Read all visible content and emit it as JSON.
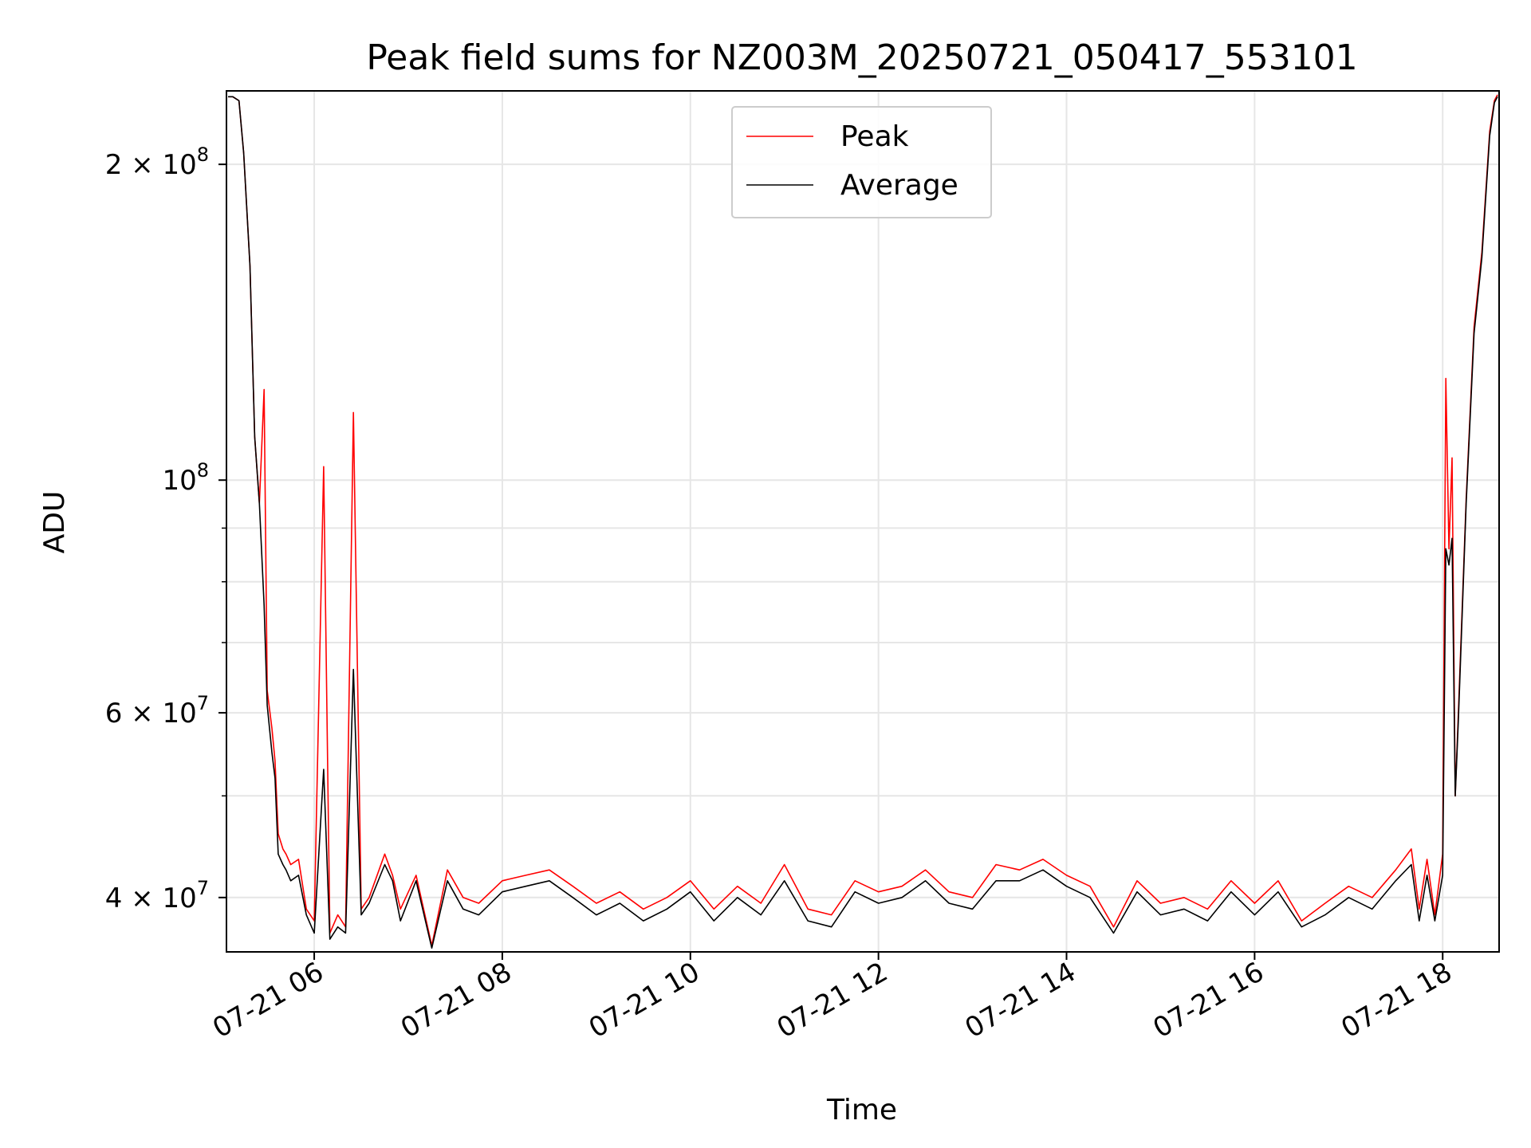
{
  "chart_data": {
    "type": "line",
    "title": "Peak field sums for NZ003M_20250721_050417_553101",
    "xlabel": "Time",
    "ylabel": "ADU",
    "yscale": "log",
    "xlim": [
      "2025-07-21 05:04",
      "2025-07-21 18:36"
    ],
    "ylim": [
      35500000,
      235000000
    ],
    "grid": true,
    "legend_position": "top-center",
    "x_ticks": [
      "07-21 06",
      "07-21 08",
      "07-21 10",
      "07-21 12",
      "07-21 14",
      "07-21 16",
      "07-21 18"
    ],
    "y_ticks": [
      {
        "base": "2 × 10",
        "exp": "8"
      },
      {
        "base": "10",
        "exp": "8"
      },
      {
        "base": "6 × 10",
        "exp": "7"
      },
      {
        "base": "4 × 10",
        "exp": "7"
      }
    ],
    "colors": {
      "Peak": "#ff0000",
      "Average": "#000000",
      "grid": "#e6e6e6"
    },
    "series": [
      {
        "name": "Peak",
        "x": [
          "05:05",
          "05:08",
          "05:12",
          "05:15",
          "05:19",
          "05:22",
          "05:25",
          "05:28",
          "05:30",
          "05:33",
          "05:35",
          "05:37",
          "05:40",
          "05:42",
          "05:45",
          "05:50",
          "05:55",
          "06:00",
          "06:06",
          "06:10",
          "06:15",
          "06:20",
          "06:25",
          "06:30",
          "06:35",
          "06:45",
          "06:50",
          "06:55",
          "07:05",
          "07:15",
          "07:25",
          "07:35",
          "07:45",
          "08:00",
          "08:15",
          "08:30",
          "08:45",
          "09:00",
          "09:15",
          "09:30",
          "09:45",
          "10:00",
          "10:15",
          "10:30",
          "10:45",
          "11:00",
          "11:15",
          "11:30",
          "11:45",
          "12:00",
          "12:15",
          "12:30",
          "12:45",
          "13:00",
          "13:15",
          "13:30",
          "13:45",
          "14:00",
          "14:15",
          "14:30",
          "14:45",
          "15:00",
          "15:15",
          "15:30",
          "15:45",
          "16:00",
          "16:15",
          "16:30",
          "16:45",
          "17:00",
          "17:15",
          "17:30",
          "17:40",
          "17:45",
          "17:50",
          "17:55",
          "18:00",
          "18:02",
          "18:04",
          "18:06",
          "18:08",
          "18:10",
          "18:15",
          "18:20",
          "18:25",
          "18:30",
          "18:33",
          "18:35"
        ],
        "y": [
          232000000,
          232000000,
          230000000,
          205000000,
          160000000,
          110000000,
          95000000,
          122000000,
          63000000,
          58000000,
          54000000,
          46000000,
          44500000,
          44000000,
          43000000,
          43500000,
          39000000,
          38000000,
          103000000,
          37000000,
          38500000,
          37500000,
          116000000,
          39000000,
          40000000,
          44000000,
          42000000,
          39000000,
          42000000,
          36000000,
          42500000,
          40000000,
          39500000,
          41500000,
          42000000,
          42500000,
          41000000,
          39500000,
          40500000,
          39000000,
          40000000,
          41500000,
          39000000,
          41000000,
          39500000,
          43000000,
          39000000,
          38500000,
          41500000,
          40500000,
          41000000,
          42500000,
          40500000,
          40000000,
          43000000,
          42500000,
          43500000,
          42000000,
          41000000,
          37500000,
          41500000,
          39500000,
          40000000,
          39000000,
          41500000,
          39500000,
          41500000,
          38000000,
          39500000,
          41000000,
          40000000,
          42500000,
          44500000,
          39000000,
          43500000,
          38500000,
          44000000,
          125000000,
          86000000,
          105000000,
          50000000,
          60000000,
          96000000,
          140000000,
          165000000,
          215000000,
          230000000,
          233000000
        ]
      },
      {
        "name": "Average",
        "x": [
          "05:05",
          "05:08",
          "05:12",
          "05:15",
          "05:19",
          "05:22",
          "05:25",
          "05:28",
          "05:30",
          "05:33",
          "05:35",
          "05:37",
          "05:40",
          "05:42",
          "05:45",
          "05:50",
          "05:55",
          "06:00",
          "06:06",
          "06:10",
          "06:15",
          "06:20",
          "06:25",
          "06:30",
          "06:35",
          "06:45",
          "06:50",
          "06:55",
          "07:05",
          "07:15",
          "07:25",
          "07:35",
          "07:45",
          "08:00",
          "08:15",
          "08:30",
          "08:45",
          "09:00",
          "09:15",
          "09:30",
          "09:45",
          "10:00",
          "10:15",
          "10:30",
          "10:45",
          "11:00",
          "11:15",
          "11:30",
          "11:45",
          "12:00",
          "12:15",
          "12:30",
          "12:45",
          "13:00",
          "13:15",
          "13:30",
          "13:45",
          "14:00",
          "14:15",
          "14:30",
          "14:45",
          "15:00",
          "15:15",
          "15:30",
          "15:45",
          "16:00",
          "16:15",
          "16:30",
          "16:45",
          "17:00",
          "17:15",
          "17:30",
          "17:40",
          "17:45",
          "17:50",
          "17:55",
          "18:00",
          "18:02",
          "18:04",
          "18:06",
          "18:08",
          "18:10",
          "18:15",
          "18:20",
          "18:25",
          "18:30",
          "18:33",
          "18:35"
        ],
        "y": [
          232000000,
          232000000,
          230000000,
          205000000,
          160000000,
          110000000,
          95000000,
          76000000,
          61000000,
          55000000,
          52000000,
          44000000,
          43000000,
          42500000,
          41500000,
          42000000,
          38500000,
          37000000,
          53000000,
          36500000,
          37500000,
          37000000,
          66000000,
          38500000,
          39500000,
          43000000,
          41500000,
          38000000,
          41500000,
          35800000,
          41500000,
          39000000,
          38500000,
          40500000,
          41000000,
          41500000,
          40000000,
          38500000,
          39500000,
          38000000,
          39000000,
          40500000,
          38000000,
          40000000,
          38500000,
          41500000,
          38000000,
          37500000,
          40500000,
          39500000,
          40000000,
          41500000,
          39500000,
          39000000,
          41500000,
          41500000,
          42500000,
          41000000,
          40000000,
          37000000,
          40500000,
          38500000,
          39000000,
          38000000,
          40500000,
          38500000,
          40500000,
          37500000,
          38500000,
          40000000,
          39000000,
          41500000,
          43000000,
          38000000,
          42000000,
          38000000,
          42000000,
          86000000,
          83000000,
          88000000,
          50000000,
          59000000,
          95000000,
          138000000,
          163000000,
          213000000,
          229000000,
          232000000
        ]
      }
    ]
  }
}
